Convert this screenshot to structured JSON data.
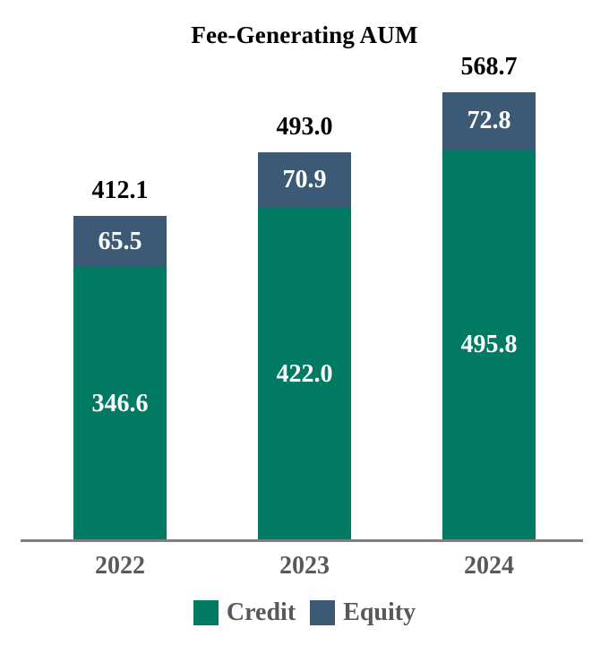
{
  "chart_data": {
    "type": "bar",
    "stacked": true,
    "title": "Fee-Generating AUM",
    "categories": [
      "2022",
      "2023",
      "2024"
    ],
    "series": [
      {
        "name": "Credit",
        "color": "#007A63",
        "values": [
          346.6,
          422.0,
          495.8
        ],
        "labels": [
          "346.6",
          "422.0",
          "495.8"
        ]
      },
      {
        "name": "Equity",
        "color": "#3C5A76",
        "values": [
          65.5,
          70.9,
          72.8
        ],
        "labels": [
          "65.5",
          "70.9",
          "72.8"
        ]
      }
    ],
    "totals": [
      412.1,
      493.0,
      568.7
    ],
    "totals_labels": [
      "412.1",
      "493.0",
      "568.7"
    ],
    "ylim": [
      0,
      568.7
    ],
    "grid": false,
    "legend_position": "bottom",
    "colors": {
      "credit": "#007A63",
      "equity": "#3C5A76",
      "axis_line": "#7F7F7F",
      "category_text": "#595959",
      "legend_text": "#595959",
      "total_text": "#000000",
      "inside_label_text": "#FFFFFF"
    }
  }
}
